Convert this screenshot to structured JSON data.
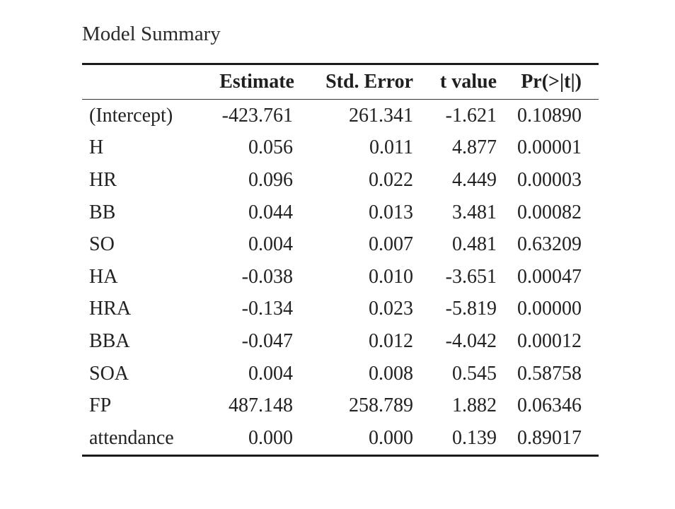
{
  "title": "Model Summary",
  "columns": [
    "",
    "Estimate",
    "Std. Error",
    "t value",
    "Pr(>|t|)"
  ],
  "rows": [
    {
      "name": "(Intercept)",
      "estimate": "-423.761",
      "std_error": "261.341",
      "t_value": "-1.621",
      "p_value": "0.10890"
    },
    {
      "name": "H",
      "estimate": "0.056",
      "std_error": "0.011",
      "t_value": "4.877",
      "p_value": "0.00001"
    },
    {
      "name": "HR",
      "estimate": "0.096",
      "std_error": "0.022",
      "t_value": "4.449",
      "p_value": "0.00003"
    },
    {
      "name": "BB",
      "estimate": "0.044",
      "std_error": "0.013",
      "t_value": "3.481",
      "p_value": "0.00082"
    },
    {
      "name": "SO",
      "estimate": "0.004",
      "std_error": "0.007",
      "t_value": "0.481",
      "p_value": "0.63209"
    },
    {
      "name": "HA",
      "estimate": "-0.038",
      "std_error": "0.010",
      "t_value": "-3.651",
      "p_value": "0.00047"
    },
    {
      "name": "HRA",
      "estimate": "-0.134",
      "std_error": "0.023",
      "t_value": "-5.819",
      "p_value": "0.00000"
    },
    {
      "name": "BBA",
      "estimate": "-0.047",
      "std_error": "0.012",
      "t_value": "-4.042",
      "p_value": "0.00012"
    },
    {
      "name": "SOA",
      "estimate": "0.004",
      "std_error": "0.008",
      "t_value": "0.545",
      "p_value": "0.58758"
    },
    {
      "name": "FP",
      "estimate": "487.148",
      "std_error": "258.789",
      "t_value": "1.882",
      "p_value": "0.06346"
    },
    {
      "name": "attendance",
      "estimate": "0.000",
      "std_error": "0.000",
      "t_value": "0.139",
      "p_value": "0.89017"
    }
  ]
}
